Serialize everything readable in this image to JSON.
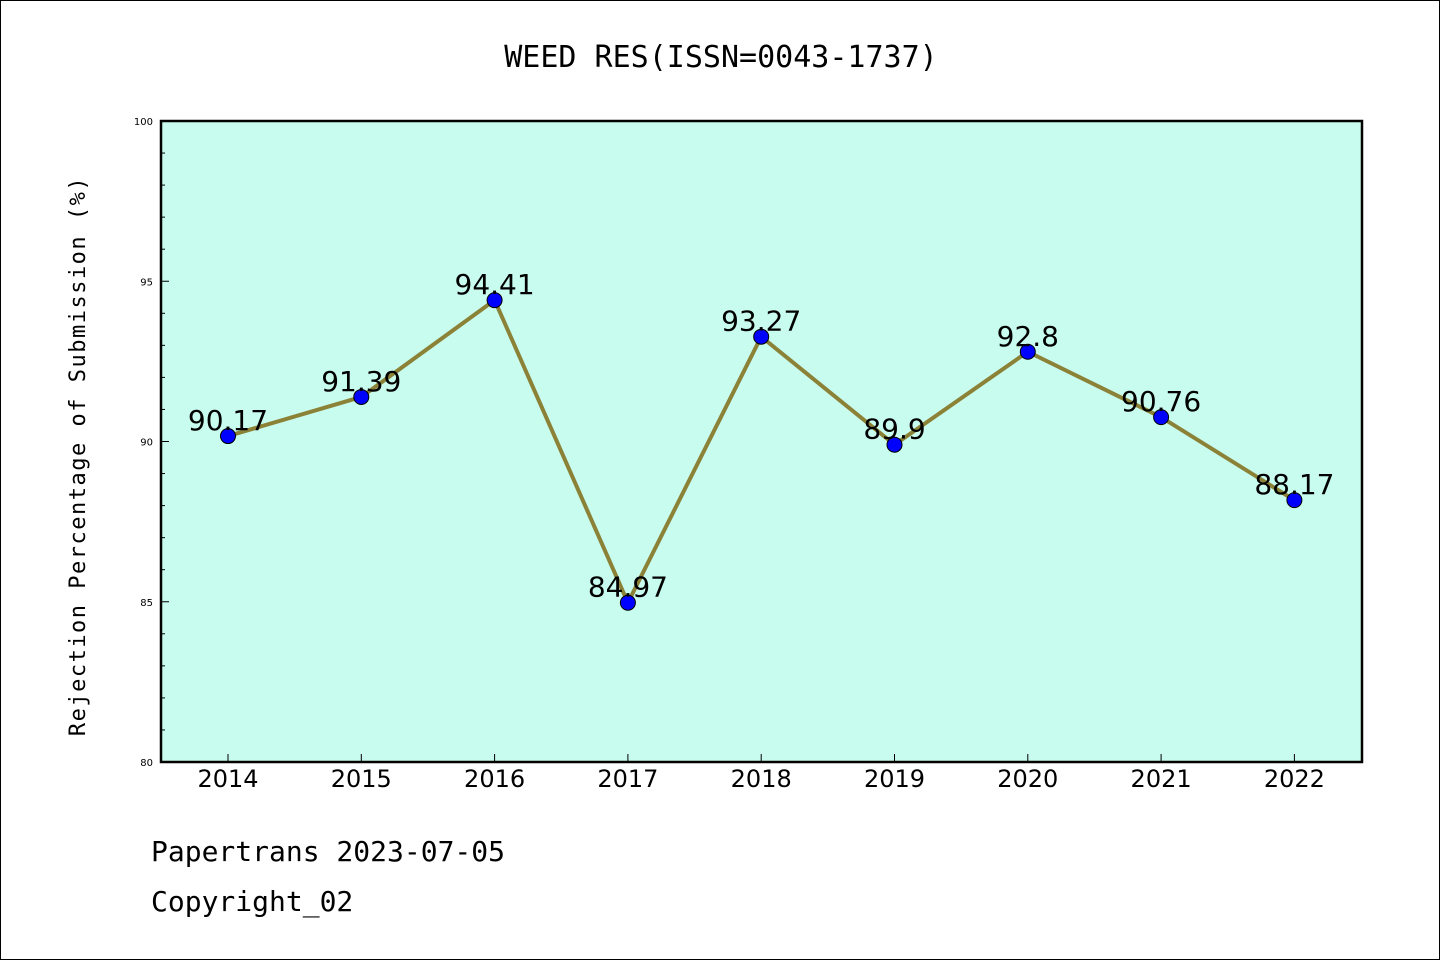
{
  "chart_data": {
    "type": "line",
    "title": "WEED RES(ISSN=0043-1737)",
    "xlabel": "",
    "ylabel": "Rejection Percentage of Submission (%)",
    "categories": [
      "2014",
      "2015",
      "2016",
      "2017",
      "2018",
      "2019",
      "2020",
      "2021",
      "2022"
    ],
    "values": [
      90.17,
      91.39,
      94.41,
      84.97,
      93.27,
      89.9,
      92.8,
      90.76,
      88.17
    ],
    "data_labels": [
      "90.17",
      "91.39",
      "94.41",
      "84.97",
      "93.27",
      "89.9",
      "92.8",
      "90.76",
      "88.17"
    ],
    "ylim": [
      80,
      100
    ],
    "yticks": [
      80,
      85,
      90,
      95,
      100
    ],
    "grid": false,
    "legend": "none",
    "colors": {
      "plot_background": "#c8fcee",
      "line": "#8b8238",
      "marker": "#0000ff"
    }
  },
  "footer": {
    "line1": "Papertrans 2023-07-05",
    "line2": "Copyright_02"
  }
}
